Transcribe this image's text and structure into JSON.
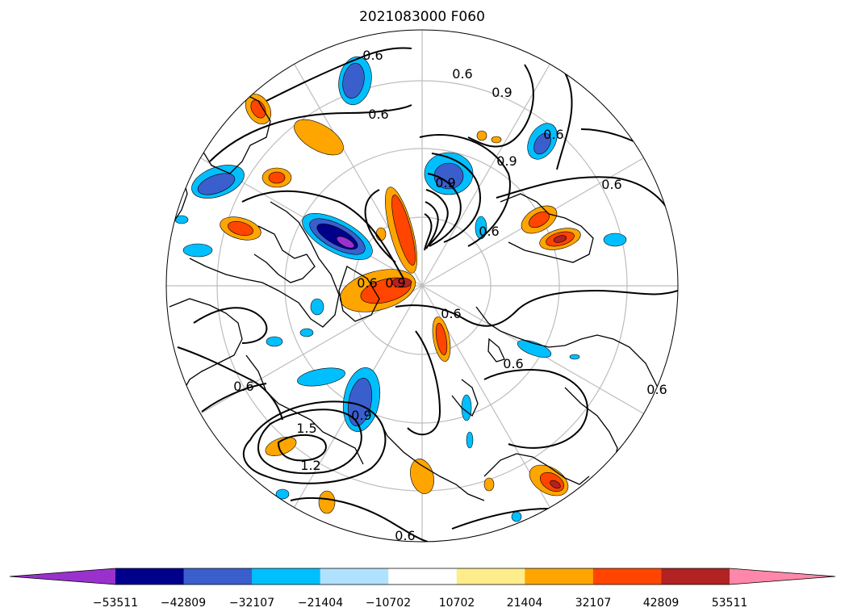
{
  "title": "2021083000 F060",
  "contour_labels": [
    {
      "id": "a",
      "text": "0.6"
    },
    {
      "id": "b",
      "text": "0.6"
    },
    {
      "id": "c",
      "text": "0.6"
    },
    {
      "id": "d",
      "text": "0.9"
    },
    {
      "id": "e",
      "text": "0.6"
    },
    {
      "id": "f",
      "text": "0.9"
    },
    {
      "id": "g",
      "text": "0.6"
    },
    {
      "id": "h",
      "text": "0.9"
    },
    {
      "id": "i",
      "text": "0.6"
    },
    {
      "id": "j",
      "text": "0.6"
    },
    {
      "id": "k",
      "text": "0.6"
    },
    {
      "id": "l",
      "text": "0.6"
    },
    {
      "id": "m",
      "text": "0.9"
    },
    {
      "id": "n",
      "text": "1.5"
    },
    {
      "id": "o",
      "text": "1.2"
    },
    {
      "id": "p",
      "text": "0.6"
    },
    {
      "id": "q",
      "text": "0.6"
    },
    {
      "id": "r",
      "text": "0.6"
    },
    {
      "id": "s",
      "text": "0.9"
    }
  ],
  "colorbar": {
    "colors": [
      "#9932cc",
      "#00008b",
      "#3a5fcd",
      "#00bfff",
      "#b0e2ff",
      "#ffffff",
      "#ffec8b",
      "#ffa500",
      "#ff4500",
      "#b22222",
      "#ff88aa"
    ],
    "ticks": [
      "−53511",
      "−42809",
      "−32107",
      "−21404",
      "−10702",
      "10702",
      "21404",
      "32107",
      "42809",
      "53511"
    ],
    "extend": "both"
  }
}
